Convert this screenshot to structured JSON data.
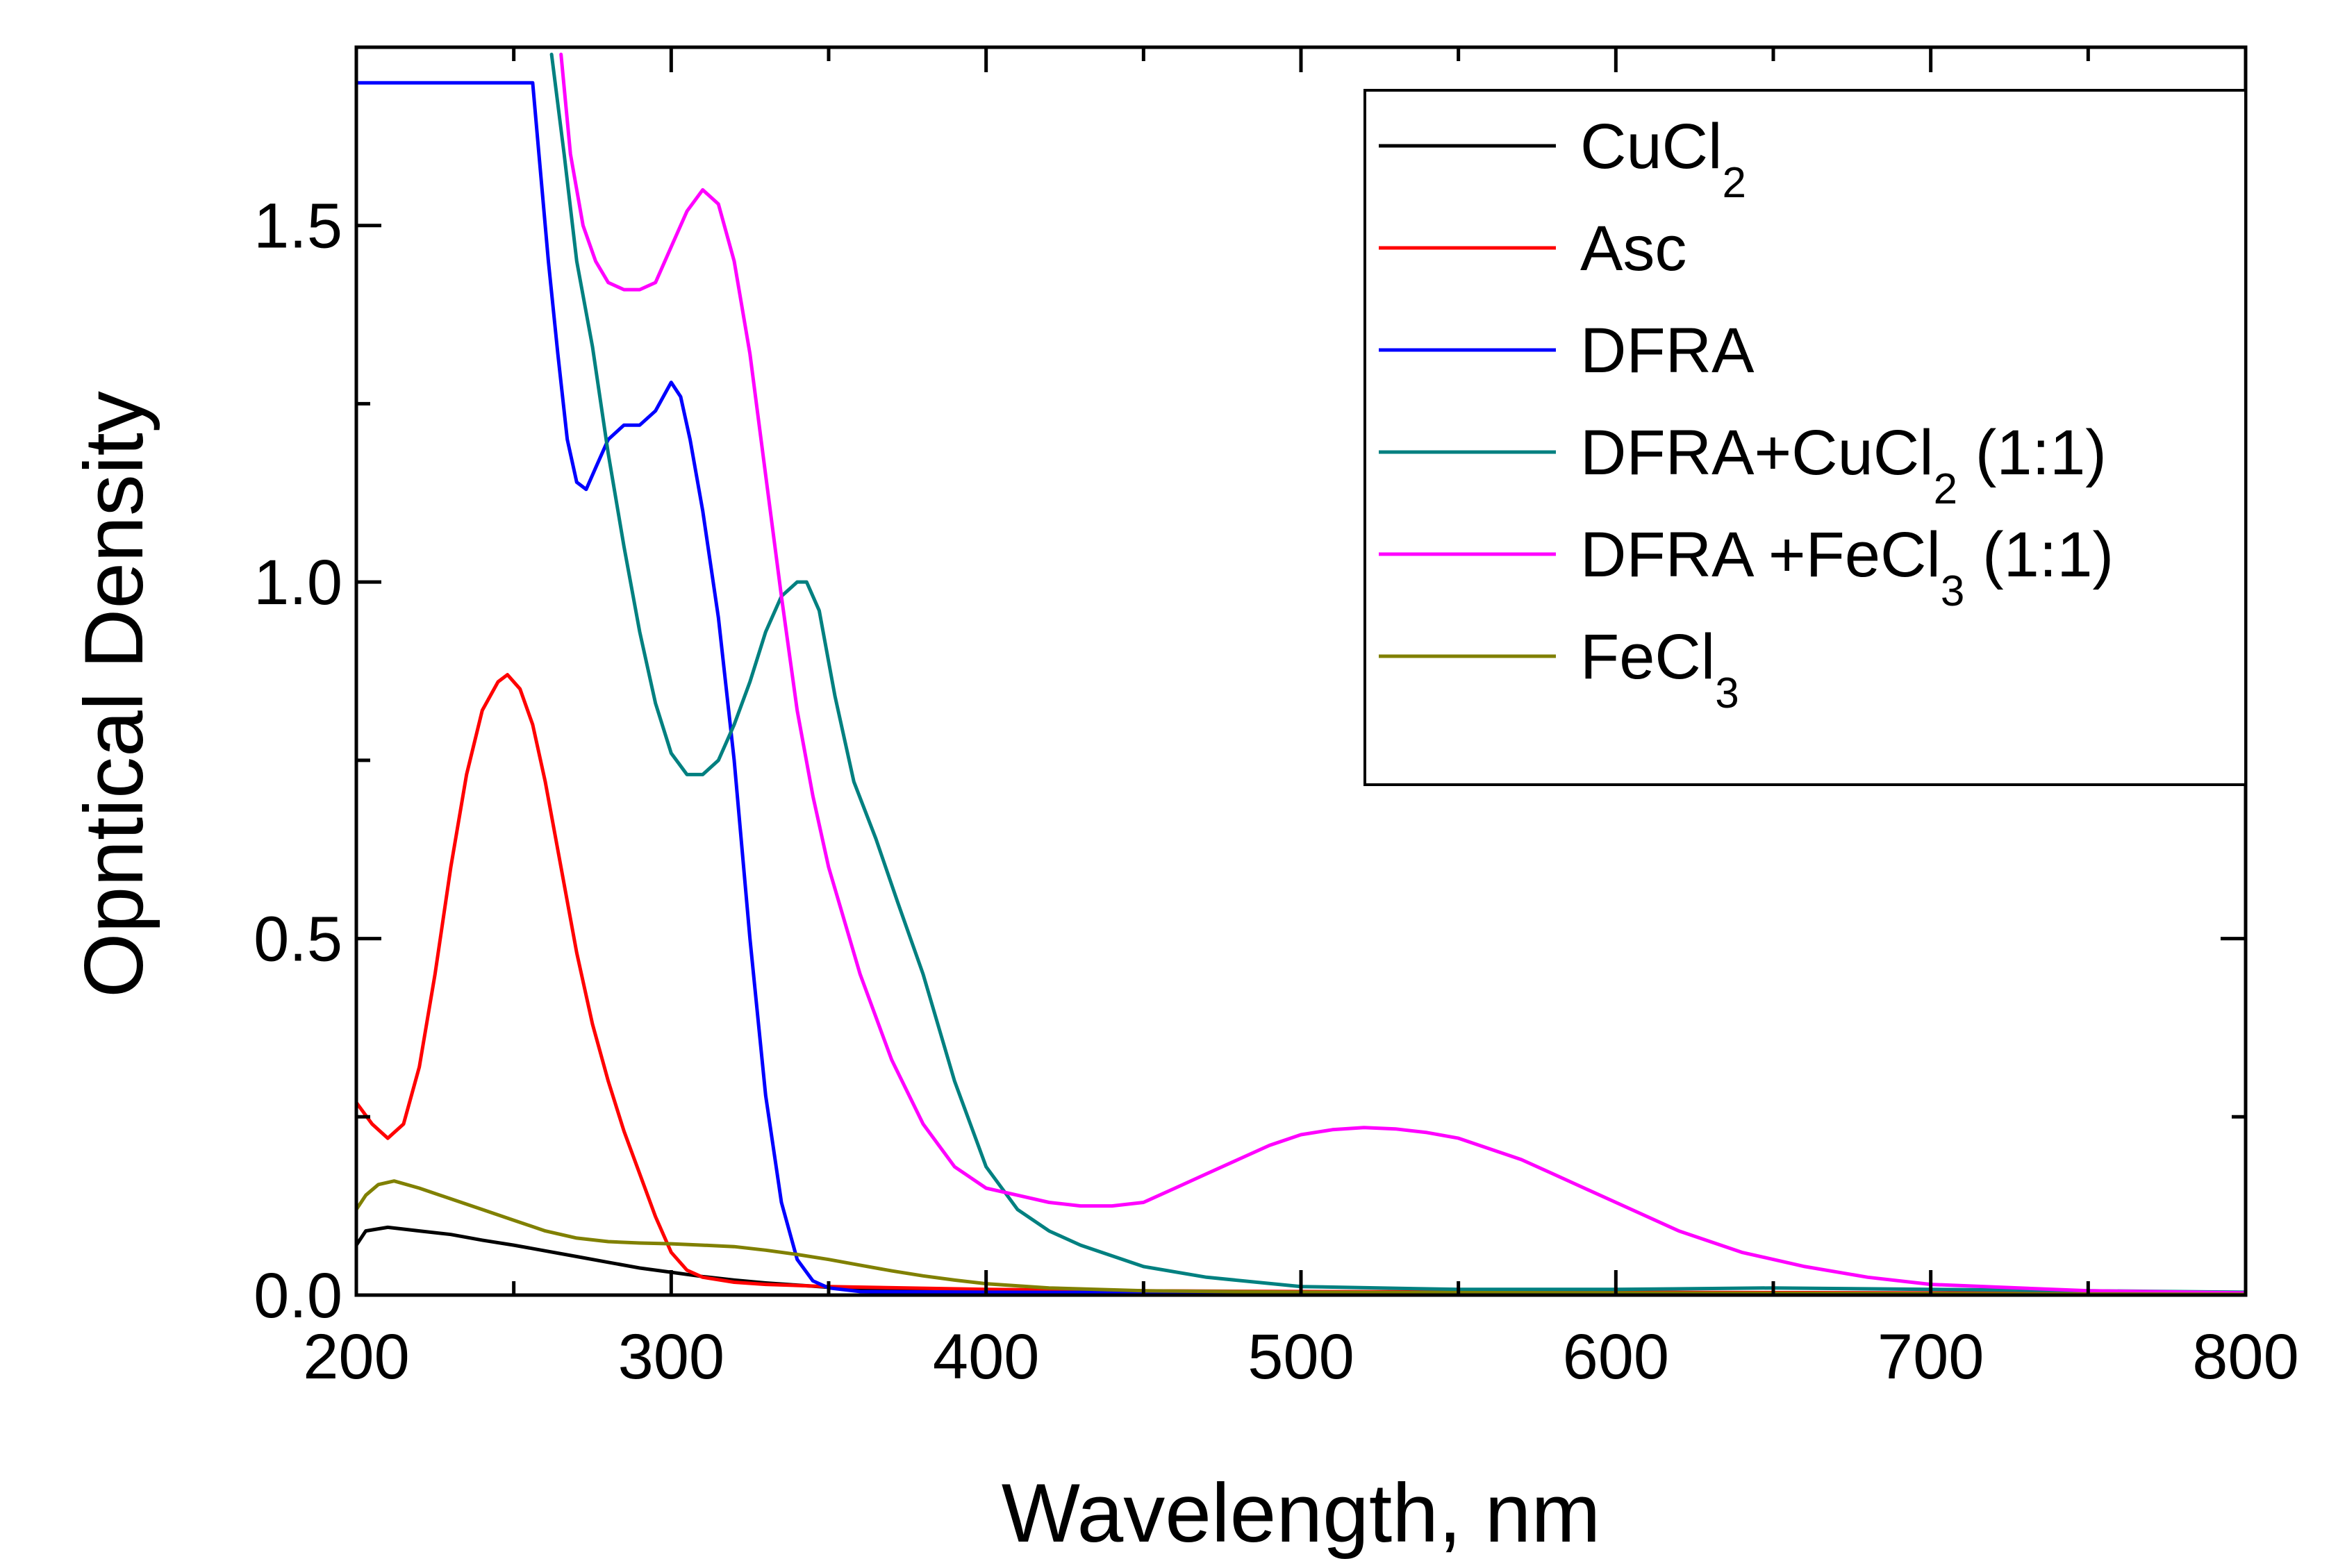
{
  "chart_data": {
    "type": "line",
    "title": "",
    "xlabel": "Wavelength, nm",
    "ylabel": "Opntical Density",
    "xlim": [
      200,
      800
    ],
    "ylim": [
      0,
      1.75
    ],
    "x_ticks": [
      200,
      300,
      400,
      500,
      600,
      700,
      800
    ],
    "y_ticks": [
      0.0,
      0.5,
      1.0,
      1.5
    ],
    "x_tick_labels": [
      "200",
      "300",
      "400",
      "500",
      "600",
      "700",
      "800"
    ],
    "y_tick_labels": [
      "0.0",
      "0.5",
      "1.0",
      "1.5"
    ],
    "grid": false,
    "legend_position": "top-right",
    "series": [
      {
        "name": "CuCl2",
        "label_main": "CuCl",
        "label_sub": "2",
        "label_tail": "",
        "color": "#000000",
        "points": [
          [
            200,
            0.07
          ],
          [
            203,
            0.09
          ],
          [
            210,
            0.095
          ],
          [
            220,
            0.09
          ],
          [
            230,
            0.085
          ],
          [
            240,
            0.077
          ],
          [
            250,
            0.07
          ],
          [
            260,
            0.062
          ],
          [
            270,
            0.054
          ],
          [
            280,
            0.046
          ],
          [
            290,
            0.038
          ],
          [
            300,
            0.032
          ],
          [
            310,
            0.026
          ],
          [
            320,
            0.021
          ],
          [
            330,
            0.017
          ],
          [
            340,
            0.014
          ],
          [
            350,
            0.011
          ],
          [
            370,
            0.008
          ],
          [
            400,
            0.006
          ],
          [
            450,
            0.004
          ],
          [
            500,
            0.003
          ],
          [
            600,
            0.002
          ],
          [
            700,
            0.001
          ],
          [
            800,
            0.001
          ]
        ]
      },
      {
        "name": "Asc",
        "label_main": "Asc",
        "label_sub": "",
        "label_tail": "",
        "color": "#ff0000",
        "points": [
          [
            200,
            0.27
          ],
          [
            205,
            0.24
          ],
          [
            210,
            0.22
          ],
          [
            215,
            0.24
          ],
          [
            220,
            0.32
          ],
          [
            225,
            0.45
          ],
          [
            230,
            0.6
          ],
          [
            235,
            0.73
          ],
          [
            240,
            0.82
          ],
          [
            245,
            0.86
          ],
          [
            248,
            0.87
          ],
          [
            252,
            0.85
          ],
          [
            256,
            0.8
          ],
          [
            260,
            0.72
          ],
          [
            265,
            0.6
          ],
          [
            270,
            0.48
          ],
          [
            275,
            0.38
          ],
          [
            280,
            0.3
          ],
          [
            285,
            0.23
          ],
          [
            290,
            0.17
          ],
          [
            295,
            0.11
          ],
          [
            300,
            0.06
          ],
          [
            305,
            0.035
          ],
          [
            310,
            0.025
          ],
          [
            320,
            0.018
          ],
          [
            330,
            0.015
          ],
          [
            350,
            0.012
          ],
          [
            400,
            0.008
          ],
          [
            450,
            0.006
          ],
          [
            500,
            0.005
          ],
          [
            600,
            0.004
          ],
          [
            700,
            0.003
          ],
          [
            800,
            0.002
          ]
        ]
      },
      {
        "name": "DFRA",
        "label_main": "DFRA",
        "label_sub": "",
        "label_tail": "",
        "color": "#0000ff",
        "points": [
          [
            200,
            1.7
          ],
          [
            202,
            1.7
          ],
          [
            256,
            1.7
          ],
          [
            258,
            1.6
          ],
          [
            261,
            1.45
          ],
          [
            264,
            1.32
          ],
          [
            267,
            1.2
          ],
          [
            270,
            1.14
          ],
          [
            273,
            1.13
          ],
          [
            276,
            1.16
          ],
          [
            280,
            1.2
          ],
          [
            285,
            1.22
          ],
          [
            290,
            1.22
          ],
          [
            295,
            1.24
          ],
          [
            300,
            1.28
          ],
          [
            303,
            1.26
          ],
          [
            306,
            1.2
          ],
          [
            310,
            1.1
          ],
          [
            315,
            0.95
          ],
          [
            320,
            0.75
          ],
          [
            325,
            0.5
          ],
          [
            330,
            0.28
          ],
          [
            335,
            0.13
          ],
          [
            340,
            0.05
          ],
          [
            345,
            0.02
          ],
          [
            350,
            0.01
          ],
          [
            360,
            0.005
          ],
          [
            400,
            0.004
          ],
          [
            500,
            0.003
          ],
          [
            600,
            0.002
          ],
          [
            700,
            0.001
          ],
          [
            800,
            0.001
          ]
        ]
      },
      {
        "name": "DFRA+CuCl2 (1:1)",
        "label_main": "DFRA+CuCl",
        "label_sub": "2",
        "label_tail": " (1:1)",
        "color": "#008080",
        "points": [
          [
            262,
            1.74
          ],
          [
            266,
            1.6
          ],
          [
            270,
            1.45
          ],
          [
            275,
            1.33
          ],
          [
            280,
            1.18
          ],
          [
            285,
            1.05
          ],
          [
            290,
            0.93
          ],
          [
            295,
            0.83
          ],
          [
            300,
            0.76
          ],
          [
            305,
            0.73
          ],
          [
            310,
            0.73
          ],
          [
            315,
            0.75
          ],
          [
            320,
            0.8
          ],
          [
            325,
            0.86
          ],
          [
            330,
            0.93
          ],
          [
            335,
            0.98
          ],
          [
            340,
            1.0
          ],
          [
            343,
            1.0
          ],
          [
            347,
            0.96
          ],
          [
            352,
            0.84
          ],
          [
            358,
            0.72
          ],
          [
            365,
            0.64
          ],
          [
            372,
            0.55
          ],
          [
            380,
            0.45
          ],
          [
            390,
            0.3
          ],
          [
            400,
            0.18
          ],
          [
            410,
            0.12
          ],
          [
            420,
            0.09
          ],
          [
            430,
            0.07
          ],
          [
            440,
            0.055
          ],
          [
            450,
            0.04
          ],
          [
            470,
            0.025
          ],
          [
            500,
            0.012
          ],
          [
            550,
            0.008
          ],
          [
            600,
            0.008
          ],
          [
            650,
            0.01
          ],
          [
            700,
            0.008
          ],
          [
            750,
            0.006
          ],
          [
            800,
            0.004
          ]
        ]
      },
      {
        "name": "DFRA +FeCl3 (1:1)",
        "label_main": "DFRA +FeCl",
        "label_sub": "3",
        "label_tail": " (1:1)",
        "color": "#ff00ff",
        "points": [
          [
            265,
            1.74
          ],
          [
            268,
            1.6
          ],
          [
            272,
            1.5
          ],
          [
            276,
            1.45
          ],
          [
            280,
            1.42
          ],
          [
            285,
            1.41
          ],
          [
            290,
            1.41
          ],
          [
            295,
            1.42
          ],
          [
            300,
            1.47
          ],
          [
            305,
            1.52
          ],
          [
            310,
            1.55
          ],
          [
            315,
            1.53
          ],
          [
            320,
            1.45
          ],
          [
            325,
            1.32
          ],
          [
            330,
            1.15
          ],
          [
            335,
            0.98
          ],
          [
            340,
            0.82
          ],
          [
            345,
            0.7
          ],
          [
            350,
            0.6
          ],
          [
            360,
            0.45
          ],
          [
            370,
            0.33
          ],
          [
            380,
            0.24
          ],
          [
            390,
            0.18
          ],
          [
            400,
            0.15
          ],
          [
            410,
            0.14
          ],
          [
            420,
            0.13
          ],
          [
            430,
            0.125
          ],
          [
            440,
            0.125
          ],
          [
            450,
            0.13
          ],
          [
            460,
            0.15
          ],
          [
            470,
            0.17
          ],
          [
            480,
            0.19
          ],
          [
            490,
            0.21
          ],
          [
            500,
            0.225
          ],
          [
            510,
            0.232
          ],
          [
            520,
            0.235
          ],
          [
            530,
            0.233
          ],
          [
            540,
            0.228
          ],
          [
            550,
            0.22
          ],
          [
            560,
            0.205
          ],
          [
            570,
            0.19
          ],
          [
            580,
            0.17
          ],
          [
            590,
            0.15
          ],
          [
            600,
            0.13
          ],
          [
            620,
            0.09
          ],
          [
            640,
            0.06
          ],
          [
            660,
            0.04
          ],
          [
            680,
            0.025
          ],
          [
            700,
            0.015
          ],
          [
            750,
            0.006
          ],
          [
            800,
            0.003
          ]
        ]
      },
      {
        "name": "FeCl3",
        "label_main": "FeCl",
        "label_sub": "3",
        "label_tail": "",
        "color": "#808000",
        "points": [
          [
            200,
            0.12
          ],
          [
            203,
            0.14
          ],
          [
            207,
            0.155
          ],
          [
            212,
            0.16
          ],
          [
            220,
            0.15
          ],
          [
            230,
            0.135
          ],
          [
            240,
            0.12
          ],
          [
            250,
            0.105
          ],
          [
            260,
            0.09
          ],
          [
            270,
            0.08
          ],
          [
            280,
            0.075
          ],
          [
            290,
            0.073
          ],
          [
            300,
            0.072
          ],
          [
            310,
            0.07
          ],
          [
            320,
            0.068
          ],
          [
            330,
            0.063
          ],
          [
            340,
            0.057
          ],
          [
            350,
            0.05
          ],
          [
            360,
            0.042
          ],
          [
            370,
            0.034
          ],
          [
            380,
            0.027
          ],
          [
            390,
            0.021
          ],
          [
            400,
            0.016
          ],
          [
            420,
            0.01
          ],
          [
            450,
            0.006
          ],
          [
            500,
            0.004
          ],
          [
            600,
            0.003
          ],
          [
            700,
            0.002
          ],
          [
            800,
            0.001
          ]
        ]
      }
    ]
  }
}
